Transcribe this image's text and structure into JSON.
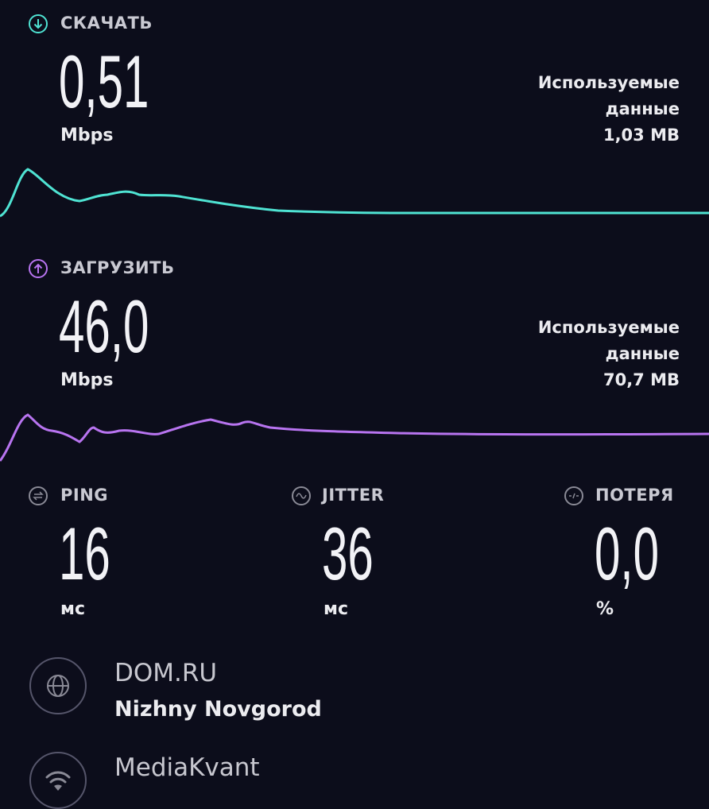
{
  "download": {
    "label": "СКАЧАТЬ",
    "value": "0,51",
    "unit": "Mbps",
    "used_label_1": "Используемые",
    "used_label_2": "данные",
    "used_value": "1,03 MB",
    "icon": "arrow-down-circle-icon",
    "color": "#4fe3d3"
  },
  "upload": {
    "label": "ЗАГРУЗИТЬ",
    "value": "46,0",
    "unit": "Mbps",
    "used_label_1": "Используемые",
    "used_label_2": "данные",
    "used_value": "70,7 MB",
    "icon": "arrow-up-circle-icon",
    "color": "#b874f0"
  },
  "metrics": [
    {
      "label": "PING",
      "value": "16",
      "unit": "мс",
      "icon": "ping-icon"
    },
    {
      "label": "JITTER",
      "value": "36",
      "unit": "мс",
      "icon": "jitter-icon"
    },
    {
      "label": "ПОТЕРЯ",
      "value": "0,0",
      "unit": "%",
      "icon": "packet-loss-icon"
    }
  ],
  "server": {
    "provider": "DOM.RU",
    "location": "Nizhny Novgorod",
    "icon": "globe-icon"
  },
  "network": {
    "name": "MediaKvant",
    "icon": "wifi-icon"
  }
}
